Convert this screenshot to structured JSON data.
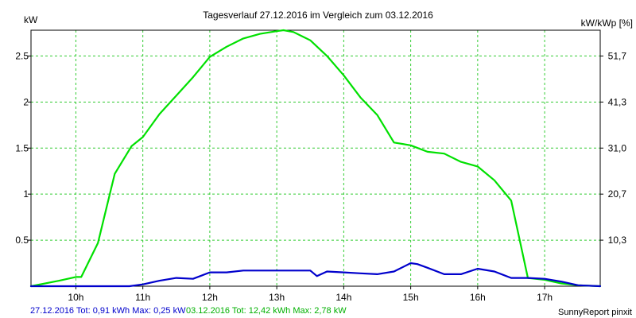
{
  "chart_data": {
    "type": "line",
    "title": "Tagesverlauf 27.12.2016 im Vergleich zum 03.12.2016",
    "ylabel_left": "kW",
    "ylabel_right": "kW/kWp [%]",
    "ylim": [
      0,
      2.78
    ],
    "xlim": [
      9.33,
      17.83
    ],
    "x_ticks": [
      {
        "value": 10,
        "label": "10h"
      },
      {
        "value": 11,
        "label": "11h"
      },
      {
        "value": 12,
        "label": "12h"
      },
      {
        "value": 13,
        "label": "13h"
      },
      {
        "value": 14,
        "label": "14h"
      },
      {
        "value": 15,
        "label": "15h"
      },
      {
        "value": 16,
        "label": "16h"
      },
      {
        "value": 17,
        "label": "17h"
      }
    ],
    "y_ticks_left": [
      {
        "value": 0.5,
        "label": "0.5"
      },
      {
        "value": 1,
        "label": "1"
      },
      {
        "value": 1.5,
        "label": "1.5"
      },
      {
        "value": 2,
        "label": "2"
      },
      {
        "value": 2.5,
        "label": "2.5"
      }
    ],
    "y_ticks_right": [
      {
        "value": 0.5,
        "label": "10,3"
      },
      {
        "value": 1,
        "label": "20,7"
      },
      {
        "value": 1.5,
        "label": "31,0"
      },
      {
        "value": 2,
        "label": "41,3"
      },
      {
        "value": 2.5,
        "label": "51,7"
      }
    ],
    "grid": true,
    "series": [
      {
        "name": "27.12.2016",
        "color": "#0000cc",
        "legend_text": "27.12.2016 Tot: 0,91 kWh Max: 0,25 kW",
        "x": [
          9.33,
          9.5,
          10.0,
          10.5,
          10.8,
          11.0,
          11.25,
          11.5,
          11.75,
          12.0,
          12.25,
          12.5,
          12.75,
          13.0,
          13.25,
          13.5,
          13.6,
          13.75,
          14.0,
          14.25,
          14.5,
          14.75,
          15.0,
          15.1,
          15.25,
          15.5,
          15.75,
          16.0,
          16.25,
          16.5,
          16.75,
          17.0,
          17.25,
          17.5,
          17.83
        ],
        "y": [
          0.0,
          0.0,
          0.0,
          0.0,
          0.0,
          0.02,
          0.06,
          0.09,
          0.08,
          0.15,
          0.15,
          0.17,
          0.17,
          0.17,
          0.17,
          0.17,
          0.11,
          0.16,
          0.15,
          0.14,
          0.13,
          0.16,
          0.25,
          0.24,
          0.2,
          0.13,
          0.13,
          0.19,
          0.16,
          0.09,
          0.09,
          0.08,
          0.05,
          0.01,
          0.0
        ]
      },
      {
        "name": "03.12.2016",
        "color": "#00e000",
        "legend_text": "03.12.2016 Tot: 12,42 kWh Max: 2,78 kW",
        "x": [
          9.33,
          9.75,
          10.0,
          10.08,
          10.33,
          10.58,
          10.83,
          11.0,
          11.25,
          11.5,
          11.75,
          12.0,
          12.25,
          12.5,
          12.75,
          13.0,
          13.1,
          13.25,
          13.5,
          13.75,
          14.0,
          14.25,
          14.5,
          14.75,
          15.0,
          15.25,
          15.5,
          15.75,
          16.0,
          16.25,
          16.5,
          16.75,
          17.0,
          17.25,
          17.5,
          17.83
        ],
        "y": [
          0.0,
          0.06,
          0.1,
          0.1,
          0.47,
          1.22,
          1.52,
          1.62,
          1.87,
          2.07,
          2.27,
          2.49,
          2.6,
          2.69,
          2.74,
          2.77,
          2.78,
          2.76,
          2.67,
          2.5,
          2.29,
          2.05,
          1.86,
          1.56,
          1.53,
          1.46,
          1.44,
          1.35,
          1.3,
          1.15,
          0.93,
          0.09,
          0.07,
          0.03,
          0.01,
          0.0
        ]
      }
    ],
    "footer_right": "SunnyReport pinxit"
  }
}
